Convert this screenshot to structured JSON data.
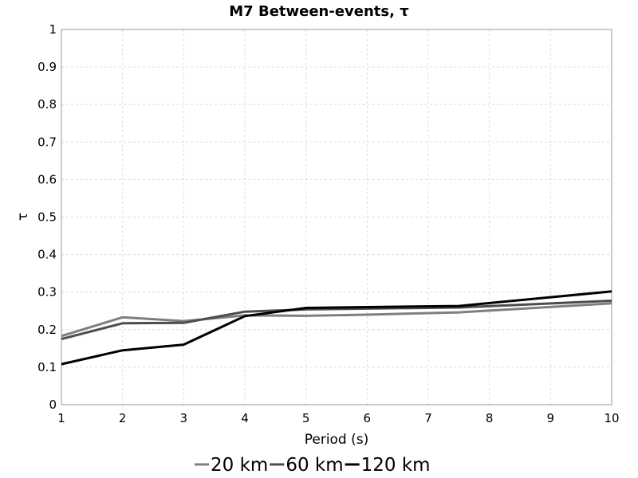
{
  "chart_data": {
    "type": "line",
    "title": "M7 Between-events, τ",
    "xlabel": "Period (s)",
    "ylabel": "τ",
    "xlim": [
      1,
      10
    ],
    "ylim": [
      0,
      1
    ],
    "xticks": [
      "1",
      "2",
      "3",
      "4",
      "5",
      "6",
      "7",
      "8",
      "9",
      "10"
    ],
    "yticks": [
      "0",
      "0.1",
      "0.2",
      "0.3",
      "0.4",
      "0.5",
      "0.6",
      "0.7",
      "0.8",
      "0.9",
      "1"
    ],
    "grid": true,
    "legend_position": "bottom",
    "series": [
      {
        "name": "20 km",
        "color": "#7f7f7f",
        "points": [
          [
            1,
            0.183
          ],
          [
            2,
            0.233
          ],
          [
            3,
            0.223
          ],
          [
            4,
            0.238
          ],
          [
            5,
            0.237
          ],
          [
            6,
            0.24
          ],
          [
            7.5,
            0.246
          ],
          [
            10,
            0.27
          ]
        ]
      },
      {
        "name": "60 km",
        "color": "#4d4d4d",
        "points": [
          [
            1,
            0.175
          ],
          [
            2,
            0.217
          ],
          [
            3,
            0.218
          ],
          [
            4,
            0.248
          ],
          [
            5,
            0.254
          ],
          [
            6,
            0.256
          ],
          [
            7.5,
            0.259
          ],
          [
            10,
            0.277
          ]
        ]
      },
      {
        "name": "120 km",
        "color": "#000000",
        "points": [
          [
            1,
            0.108
          ],
          [
            2,
            0.145
          ],
          [
            3,
            0.16
          ],
          [
            4,
            0.236
          ],
          [
            5,
            0.258
          ],
          [
            6,
            0.26
          ],
          [
            7.5,
            0.263
          ],
          [
            10,
            0.302
          ]
        ]
      }
    ]
  }
}
